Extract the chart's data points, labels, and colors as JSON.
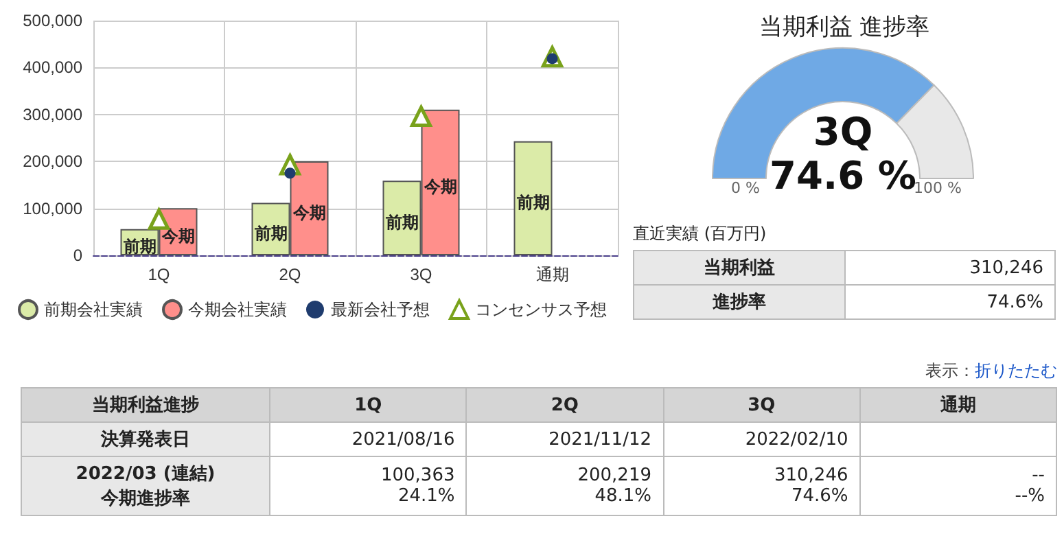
{
  "chart_data": [
    {
      "type": "bar",
      "categories": [
        "1Q",
        "2Q",
        "3Q",
        "通期"
      ],
      "series": [
        {
          "name": "前期会社実績",
          "color": "#dbeba8",
          "values": [
            56000,
            112000,
            159000,
            243000
          ],
          "value_labels": [
            "前期",
            "前期",
            "前期",
            "前期"
          ]
        },
        {
          "name": "今期会社実績",
          "color": "#ff8f8b",
          "values": [
            100363,
            200219,
            310246,
            null
          ],
          "value_labels": [
            "今期",
            "今期",
            "今期",
            null
          ]
        },
        {
          "name": "最新会社予想",
          "type": "scatter",
          "marker": "circle",
          "color": "#1f3c6e",
          "x": [
            "1Q",
            "2Q",
            "3Q",
            "通期"
          ],
          "values": [
            null,
            175000,
            null,
            419000
          ]
        },
        {
          "name": "コンセンサス予想",
          "type": "scatter",
          "marker": "triangle",
          "color": "#79a21b",
          "x": [
            "1Q",
            "2Q",
            "3Q",
            "通期"
          ],
          "values": [
            77000,
            193000,
            296000,
            423000
          ]
        }
      ],
      "ylim": [
        0,
        500000
      ],
      "yticks": [
        0,
        {
          "value": 100000,
          "label": "100,000"
        },
        {
          "value": 200000,
          "label": "200,000"
        },
        {
          "value": 300000,
          "label": "300,000"
        },
        {
          "value": 400000,
          "label": "400,000"
        },
        {
          "value": 500000,
          "label": "500,000"
        }
      ],
      "grid": true,
      "legend": "bottom"
    },
    {
      "type": "donut",
      "title": "当期利益 進捗率",
      "categories": [
        null,
        null
      ],
      "values": [
        74.6,
        25.4
      ],
      "colors": [
        "#6fa9e5",
        "#e8e8e8"
      ],
      "annotations": [
        "3Q",
        "74.6 %",
        "0 %",
        "100 %"
      ]
    },
    {
      "type": "other",
      "title": "直近実績 (百万円)",
      "y_categories": [
        "当期利益",
        "進捗率"
      ],
      "cell_labels": [
        [
          "310,246"
        ],
        [
          "74.6%"
        ]
      ]
    },
    {
      "type": "other",
      "annotations": [
        "表示：",
        "折りたたむ"
      ],
      "ylabel": "当期利益進捗",
      "categories": [
        "1Q",
        "2Q",
        "3Q",
        "通期"
      ],
      "y_categories": [
        "決算発表日",
        "2022/03 (連結)\n今期進捗率"
      ],
      "cell_labels": [
        [
          "2021/08/16",
          "2021/11/12",
          "2022/02/10",
          null
        ],
        [
          "100,363\n24.1%",
          "200,219\n48.1%",
          "310,246\n74.6%",
          "--\n--%"
        ]
      ]
    }
  ]
}
